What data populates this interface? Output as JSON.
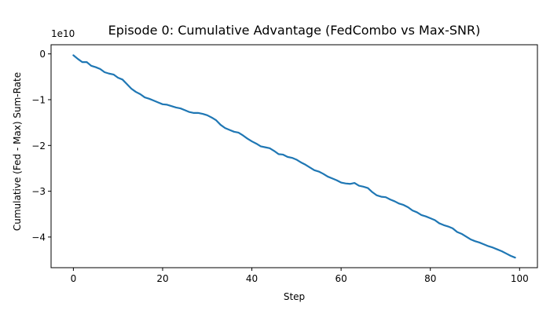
{
  "chart_data": {
    "type": "line",
    "title": "Episode 0: Cumulative Advantage (FedCombo vs Max-SNR)",
    "xlabel": "Step",
    "ylabel": "Cumulative (Fed - Max) Sum-Rate",
    "offset_label": "1e10",
    "xlim": [
      -5,
      104
    ],
    "ylim": [
      -4.67,
      0.2
    ],
    "y_scale_factor": 10000000000,
    "xticks": [
      0,
      20,
      40,
      60,
      80,
      100
    ],
    "yticks": [
      0,
      -1,
      -2,
      -3,
      -4
    ],
    "xtick_labels": [
      "0",
      "20",
      "40",
      "60",
      "80",
      "100"
    ],
    "ytick_labels": [
      "0",
      "−1",
      "−2",
      "−3",
      "−4"
    ],
    "grid": false,
    "color": "#1f77b4",
    "series": [
      {
        "x": [
          0,
          1,
          2,
          3,
          4,
          5,
          6,
          7,
          8,
          9,
          10,
          11,
          12,
          13,
          14,
          15,
          16,
          17,
          18,
          19,
          20,
          21,
          22,
          23,
          24,
          25,
          26,
          27,
          28,
          29,
          30,
          31,
          32,
          33,
          34,
          35,
          36,
          37,
          38,
          39,
          40,
          41,
          42,
          43,
          44,
          45,
          46,
          47,
          48,
          49,
          50,
          51,
          52,
          53,
          54,
          55,
          56,
          57,
          58,
          59,
          60,
          61,
          62,
          63,
          64,
          65,
          66,
          67,
          68,
          69,
          70,
          71,
          72,
          73,
          74,
          75,
          76,
          77,
          78,
          79,
          80,
          81,
          82,
          83,
          84,
          85,
          86,
          87,
          88,
          89,
          90,
          91,
          92,
          93,
          94,
          95,
          96,
          97,
          98,
          99
        ],
        "y": [
          -0.03,
          -0.11,
          -0.18,
          -0.18,
          -0.26,
          -0.29,
          -0.33,
          -0.4,
          -0.43,
          -0.45,
          -0.52,
          -0.56,
          -0.66,
          -0.76,
          -0.83,
          -0.88,
          -0.95,
          -0.98,
          -1.02,
          -1.06,
          -1.1,
          -1.11,
          -1.14,
          -1.17,
          -1.19,
          -1.23,
          -1.27,
          -1.29,
          -1.29,
          -1.31,
          -1.34,
          -1.39,
          -1.45,
          -1.55,
          -1.62,
          -1.66,
          -1.7,
          -1.72,
          -1.78,
          -1.85,
          -1.91,
          -1.96,
          -2.02,
          -2.04,
          -2.06,
          -2.12,
          -2.19,
          -2.2,
          -2.25,
          -2.27,
          -2.31,
          -2.37,
          -2.42,
          -2.48,
          -2.54,
          -2.57,
          -2.62,
          -2.68,
          -2.72,
          -2.76,
          -2.81,
          -2.83,
          -2.84,
          -2.82,
          -2.88,
          -2.9,
          -2.93,
          -3.02,
          -3.09,
          -3.12,
          -3.13,
          -3.18,
          -3.22,
          -3.27,
          -3.3,
          -3.35,
          -3.42,
          -3.46,
          -3.52,
          -3.55,
          -3.59,
          -3.63,
          -3.7,
          -3.74,
          -3.77,
          -3.81,
          -3.89,
          -3.93,
          -3.99,
          -4.05,
          -4.09,
          -4.12,
          -4.16,
          -4.2,
          -4.23,
          -4.27,
          -4.31,
          -4.36,
          -4.41,
          -4.45
        ]
      }
    ]
  }
}
